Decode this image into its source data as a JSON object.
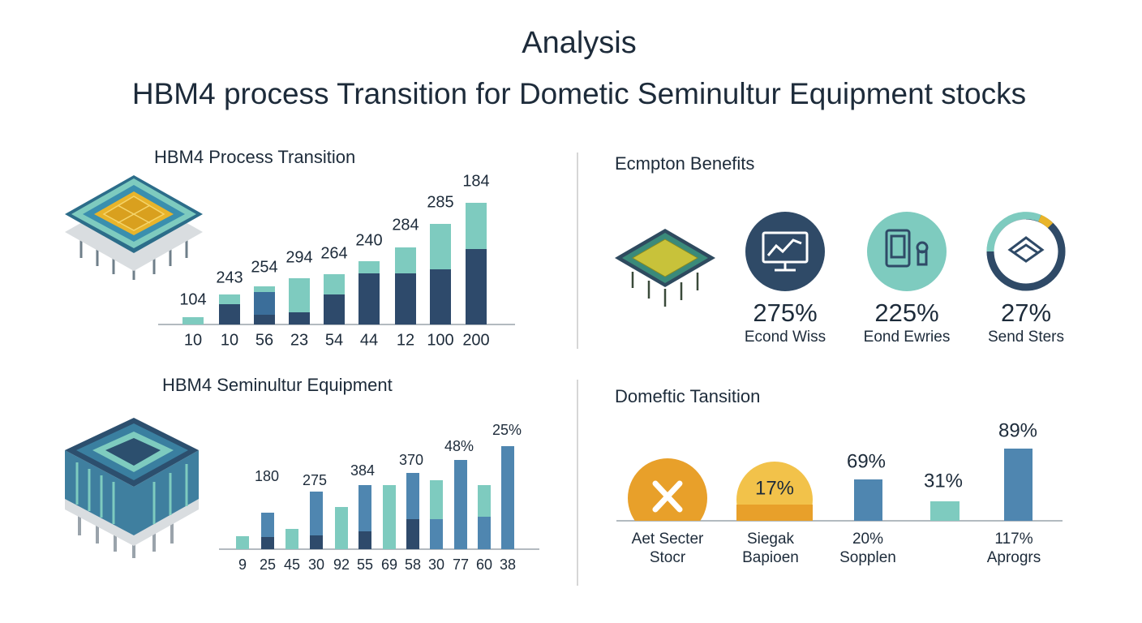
{
  "header": {
    "title": "Analysis",
    "subtitle": "HBM4 process Transition for Dometic Seminultur Equipment stocks"
  },
  "panels": [
    {
      "title": "HBM4 Process Transition",
      "bar_labels": [
        "104",
        "243",
        "254",
        "294",
        "264",
        "240",
        "284",
        "285",
        "184"
      ],
      "categories": [
        "10",
        "10",
        "56",
        "23",
        "54",
        "44",
        "12",
        "100",
        "200"
      ]
    },
    {
      "title": "Ecmpton Benefits",
      "items": [
        {
          "value": "275%",
          "label": "Econd Wiss"
        },
        {
          "value": "225%",
          "label": "Eond Ewries"
        },
        {
          "value": "27%",
          "label": "Send Sters"
        }
      ]
    },
    {
      "title": "HBM4 Seminultur Equipment",
      "bar_labels": [
        "180",
        "275",
        "384",
        "370",
        "48%",
        "25%"
      ],
      "categories": [
        "9",
        "25",
        "45",
        "30",
        "92",
        "55",
        "69",
        "58",
        "30",
        "77",
        "60",
        "38"
      ]
    },
    {
      "title": "Domeftic Tansition",
      "items": [
        {
          "label_lines": [
            "Aet Secter",
            "Stocr"
          ]
        },
        {
          "value": "17%",
          "label_lines": [
            "Siegak",
            "Bapioen"
          ]
        },
        {
          "value": "69%",
          "label_lines": [
            "20%",
            "Sopplen"
          ]
        },
        {
          "value": "31%"
        },
        {
          "value": "89%",
          "label_lines": [
            "117%",
            "Aprogrs"
          ]
        }
      ]
    }
  ]
}
